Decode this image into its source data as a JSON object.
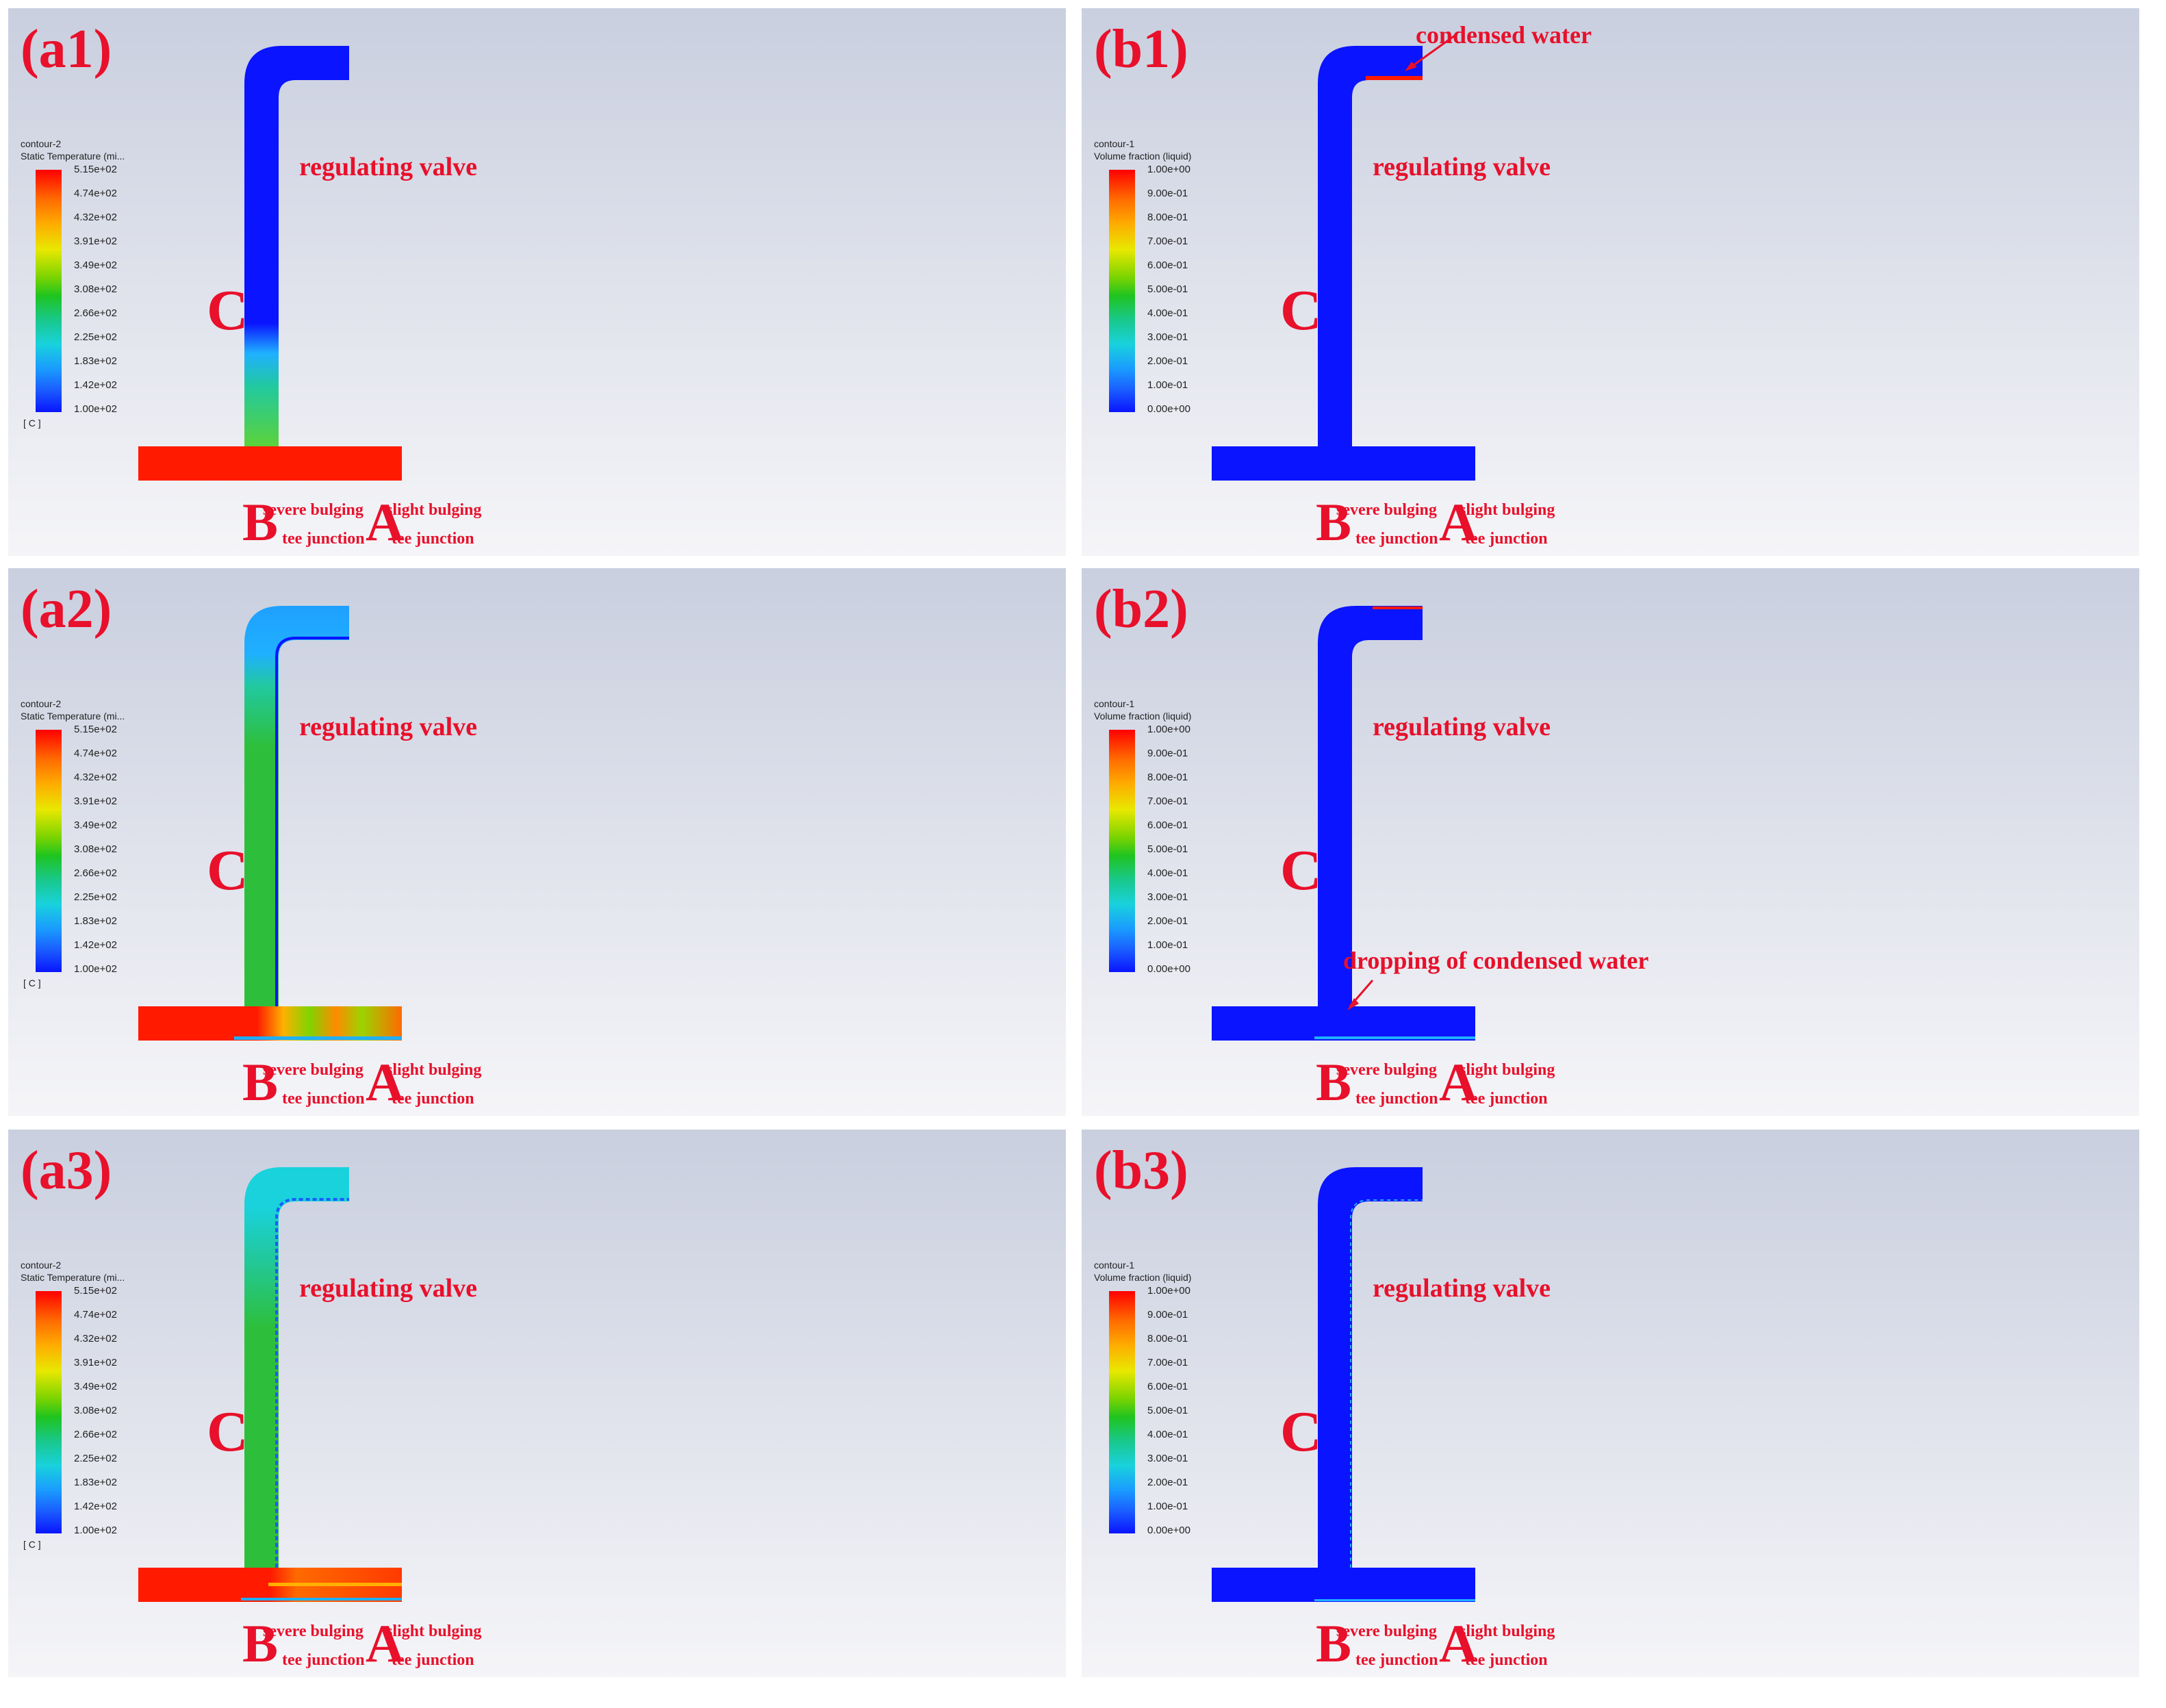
{
  "colors": {
    "label_red": "#e8102b",
    "hot_red": "#ff1a00",
    "cold_blue": "#0a14ff",
    "cyan": "#1fb0ff",
    "green": "#2dbf3c"
  },
  "common": {
    "regulating_valve": "regulating valve",
    "letter_a": "A",
    "letter_b": "B",
    "letter_c": "C",
    "slight_bulging": "slight bulging",
    "severe_bulging": "severe bulging",
    "tee_junction": "tee junction"
  },
  "legend_temperature": {
    "title": "contour-2",
    "subtitle": "Static Temperature (mi...",
    "unit": "[ C ]",
    "ticks": [
      "5.15e+02",
      "4.74e+02",
      "4.32e+02",
      "3.91e+02",
      "3.49e+02",
      "3.08e+02",
      "2.66e+02",
      "2.25e+02",
      "1.83e+02",
      "1.42e+02",
      "1.00e+02"
    ]
  },
  "legend_liquid": {
    "title": "contour-1",
    "subtitle": "Volume fraction (liquid)",
    "ticks": [
      "1.00e+00",
      "9.00e-01",
      "8.00e-01",
      "7.00e-01",
      "6.00e-01",
      "5.00e-01",
      "4.00e-01",
      "3.00e-01",
      "2.00e-01",
      "1.00e-01",
      "0.00e+00"
    ]
  },
  "panels": {
    "a1": {
      "label": "(a1)"
    },
    "b1": {
      "label": "(b1)",
      "annotation": "condensed water"
    },
    "a2": {
      "label": "(a2)"
    },
    "b2": {
      "label": "(b2)",
      "annotation": "dropping of condensed water"
    },
    "a3": {
      "label": "(a3)"
    },
    "b3": {
      "label": "(b3)"
    }
  }
}
